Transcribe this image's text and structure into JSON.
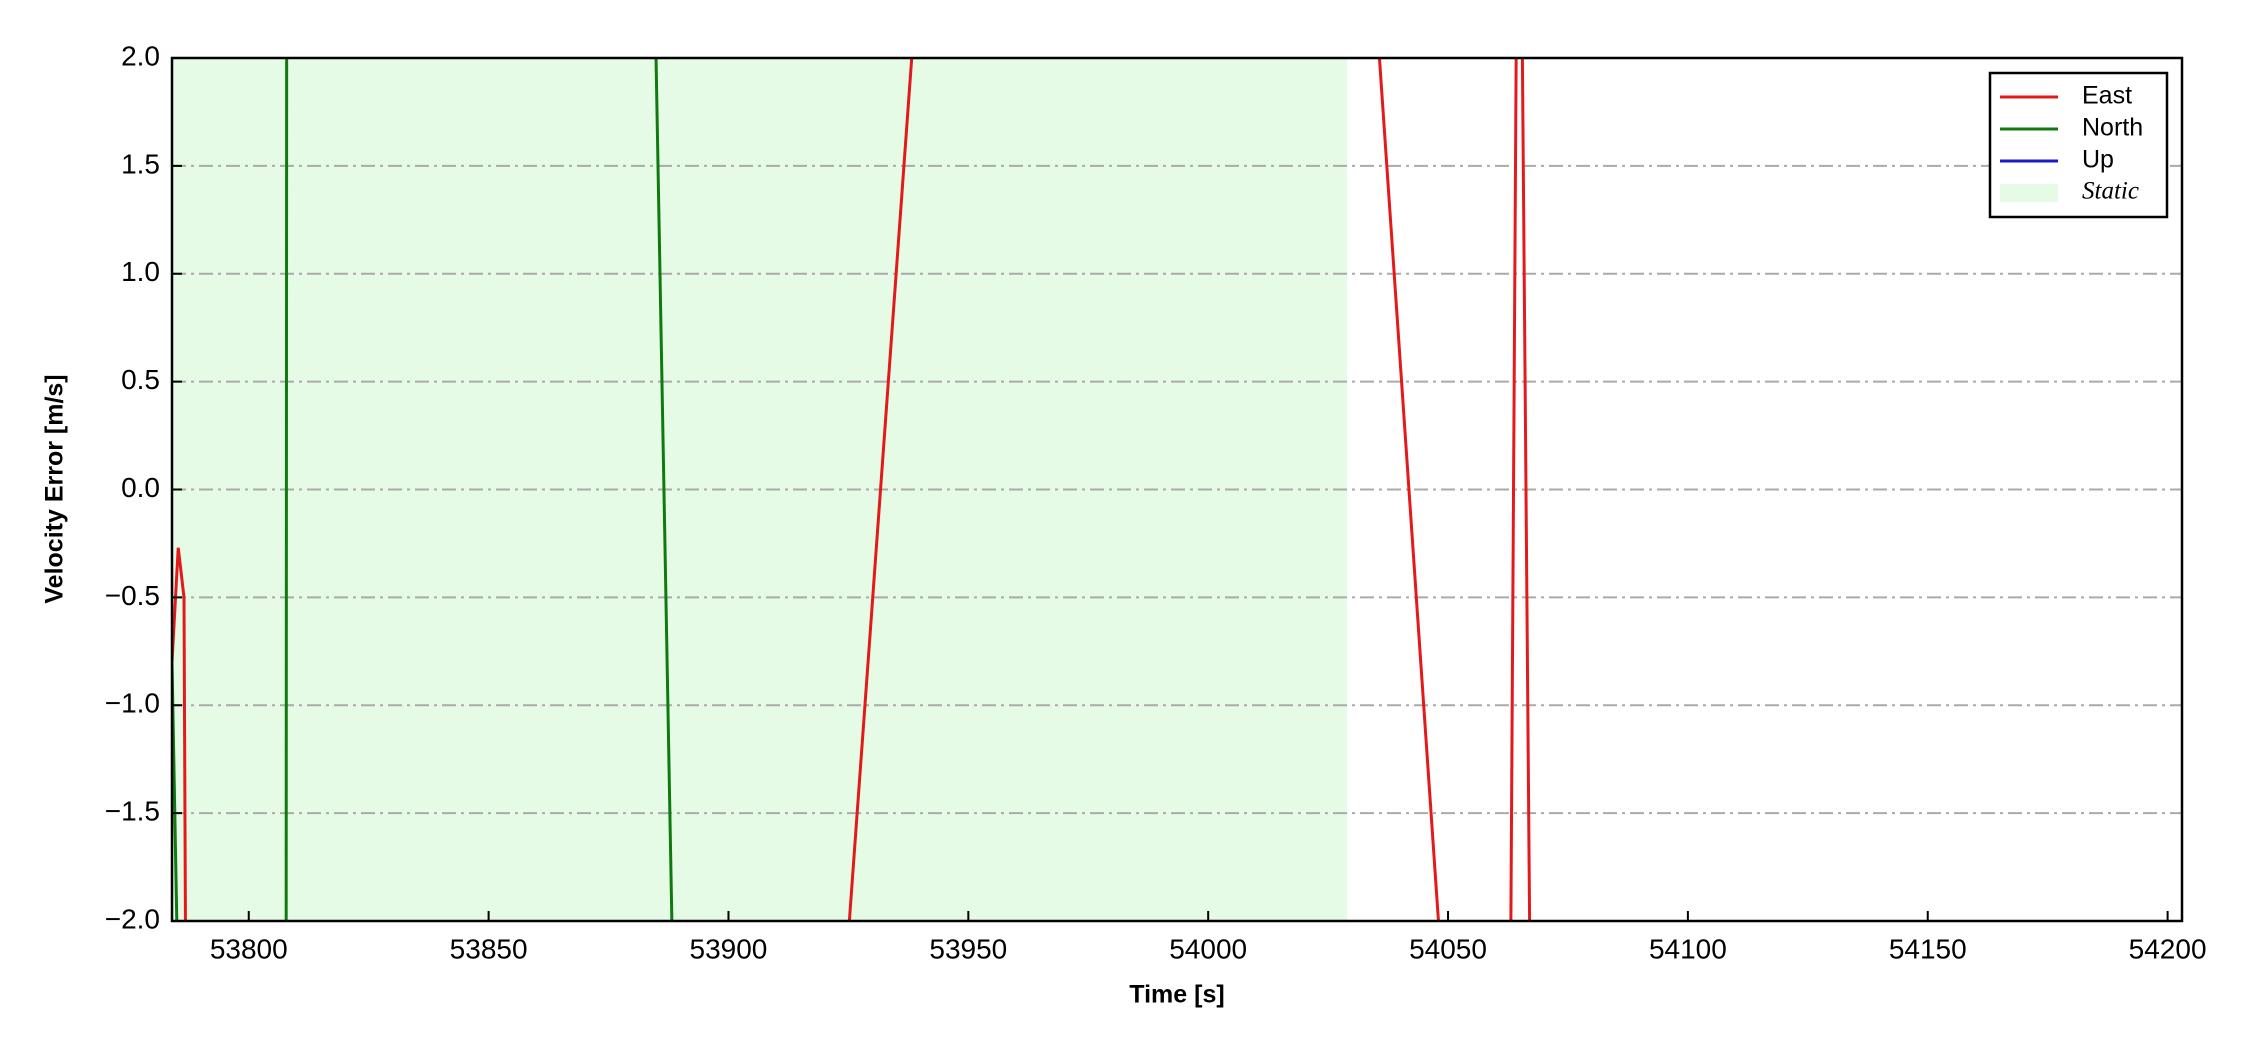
{
  "chart_data": {
    "type": "line",
    "xlabel": "Time [s]",
    "ylabel": "Velocity Error [m/s]",
    "xlim": [
      53784,
      54203
    ],
    "ylim": [
      -2,
      2
    ],
    "xticks": [
      53800,
      53850,
      53900,
      53950,
      54000,
      54050,
      54100,
      54150,
      54200
    ],
    "yticks": [
      {
        "value": -2,
        "label": "−2.0"
      },
      {
        "value": -1.5,
        "label": "−1.5"
      },
      {
        "value": -1,
        "label": "−1.0"
      },
      {
        "value": -0.5,
        "label": "−0.5"
      },
      {
        "value": 0,
        "label": "0.0"
      },
      {
        "value": 0.5,
        "label": "0.5"
      },
      {
        "value": 1,
        "label": "1.0"
      },
      {
        "value": 1.5,
        "label": "1.5"
      },
      {
        "value": 2,
        "label": "2.0"
      }
    ],
    "grid": "y",
    "legend": "upper right",
    "series": [
      {
        "name": "East",
        "color": "#e31a1c",
        "x": [
          53784.0,
          53785.3,
          53786.5,
          53786.8,
          null,
          53925.2,
          53938.2,
          null,
          54035.7,
          54048.0,
          null,
          54063.1,
          54064.2,
          null,
          54065.5,
          54067.0
        ],
        "values": [
          -0.8,
          -0.27,
          -0.5,
          -2,
          null,
          -2,
          2,
          null,
          2,
          -2,
          null,
          -2,
          2,
          null,
          2,
          -2
        ]
      },
      {
        "name": "North",
        "color": "#107a10",
        "x": [
          53784.0,
          53785.0,
          null,
          53807.8,
          53807.9,
          null,
          53884.9,
          53888.2
        ],
        "values": [
          -0.8,
          -2,
          null,
          -2,
          2,
          null,
          2,
          -2
        ]
      },
      {
        "name": "Up",
        "color": "#1a1acc",
        "x": [],
        "values": []
      }
    ],
    "spans": [
      {
        "name": "Static",
        "start": 53784,
        "end": 54029,
        "color": "#e6fbe6"
      }
    ]
  }
}
